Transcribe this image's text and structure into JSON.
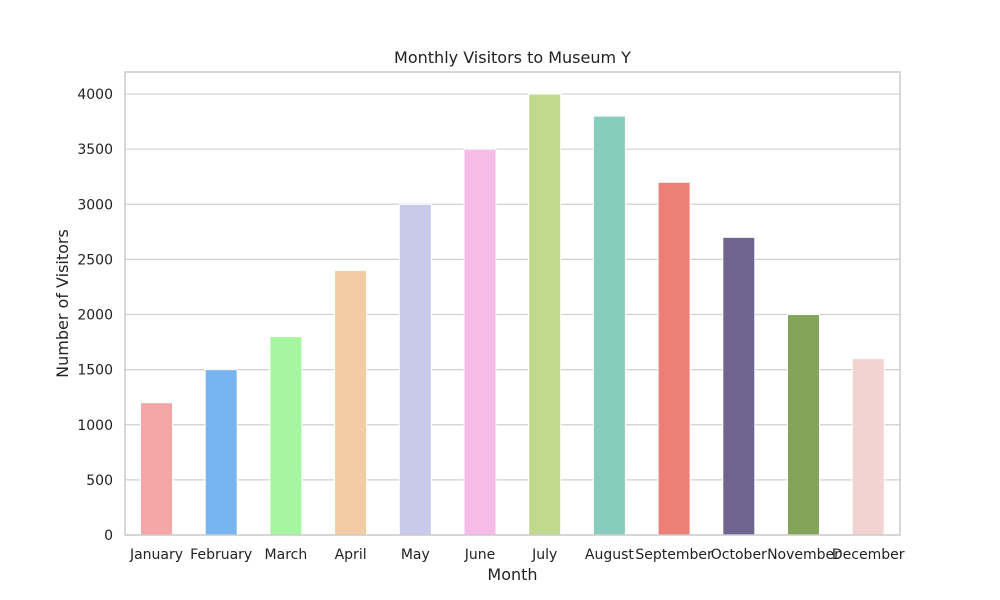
{
  "chart_data": {
    "type": "bar",
    "title": "Monthly Visitors to Museum Y",
    "xlabel": "Month",
    "ylabel": "Number of Visitors",
    "categories": [
      "January",
      "February",
      "March",
      "April",
      "May",
      "June",
      "July",
      "August",
      "September",
      "October",
      "November",
      "December"
    ],
    "values": [
      1200,
      1500,
      1800,
      2400,
      3000,
      3500,
      4000,
      3800,
      3200,
      2700,
      2000,
      1600
    ],
    "colors": [
      "#f4a6a6",
      "#78b4f0",
      "#a6f5a0",
      "#f3cba4",
      "#c9c9ec",
      "#f6bbe6",
      "#c1d98c",
      "#86cdbd",
      "#ec7f78",
      "#6f6490",
      "#84a45a",
      "#f3d2d2"
    ],
    "yticks": [
      0,
      500,
      1000,
      1500,
      2000,
      2500,
      3000,
      3500,
      4000
    ],
    "ylim": [
      0,
      4200
    ],
    "grid": "horizontal",
    "legend": "none"
  }
}
